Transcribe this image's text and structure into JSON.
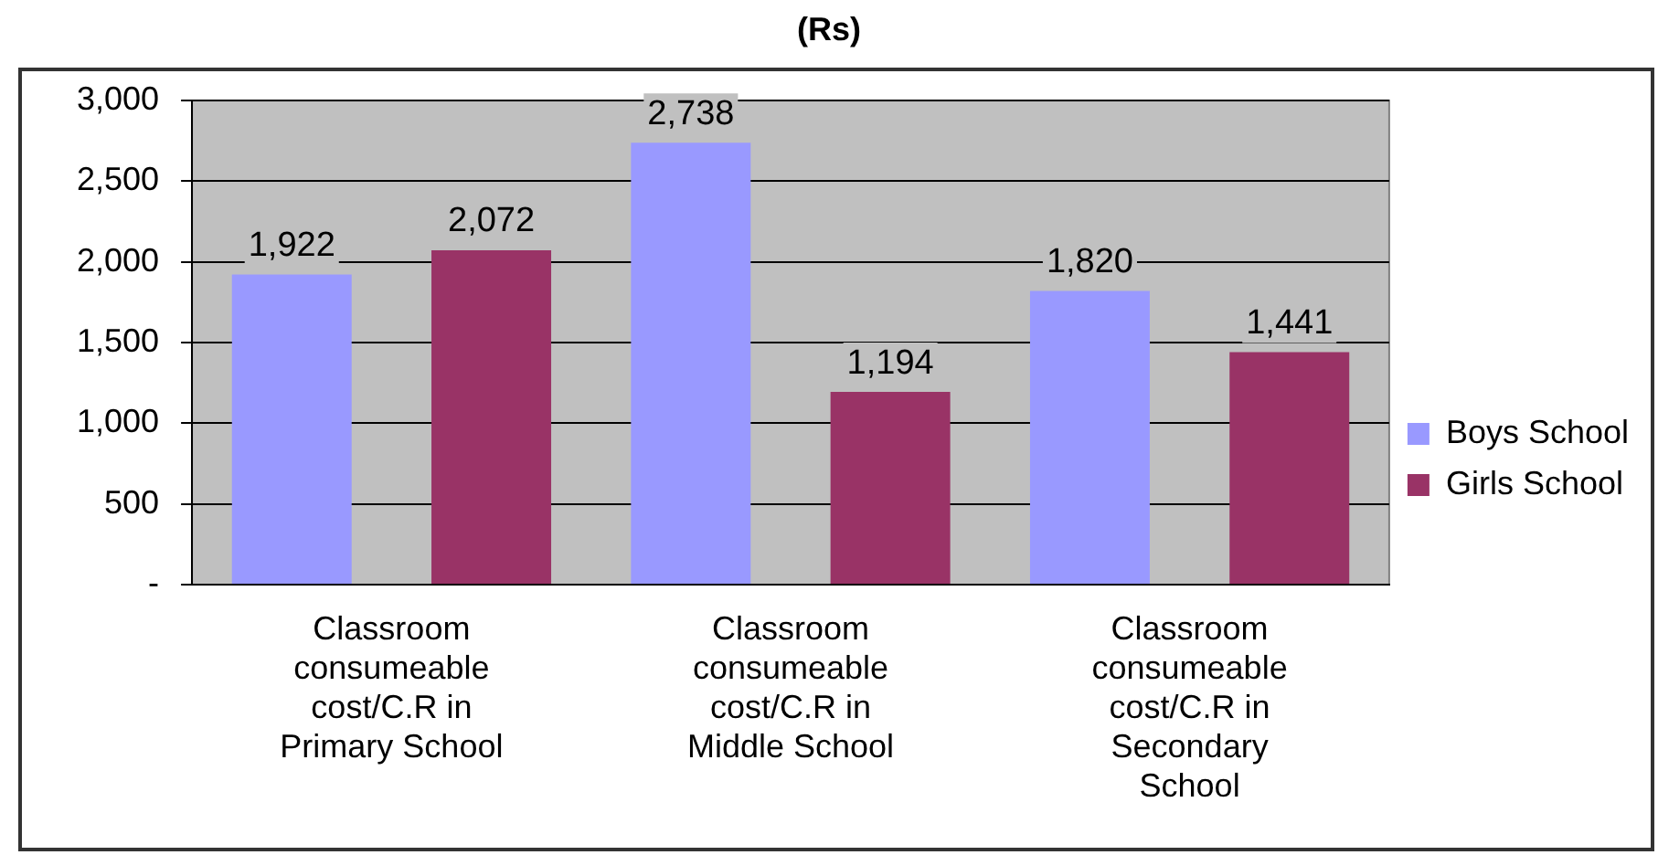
{
  "chart_data": {
    "type": "bar",
    "title": "(Rs)",
    "categories": [
      "Classroom consumeable cost/C.R in Primary School",
      "Classroom consumeable cost/C.R in Middle School",
      "Classroom consumeable cost/C.R in Secondary School"
    ],
    "series": [
      {
        "name": "Boys School",
        "color": "#9999ff",
        "values": [
          1922,
          2738,
          1820
        ],
        "value_labels": [
          "1,922",
          "2,738",
          "1,820"
        ]
      },
      {
        "name": "Girls School",
        "color": "#993366",
        "values": [
          2072,
          1194,
          1441
        ],
        "value_labels": [
          "2,072",
          "1,194",
          "1,441"
        ]
      }
    ],
    "ylim": [
      0,
      3000
    ],
    "yticks": [
      {
        "value": 0,
        "label": "-"
      },
      500,
      {
        "value": 1000,
        "label": "1,000"
      },
      {
        "value": 1500,
        "label": "1,500"
      },
      {
        "value": 2000,
        "label": "2,000"
      },
      {
        "value": 2500,
        "label": "2,500"
      },
      {
        "value": 3000,
        "label": "3,000"
      }
    ],
    "grid": "y",
    "legend": "right"
  }
}
